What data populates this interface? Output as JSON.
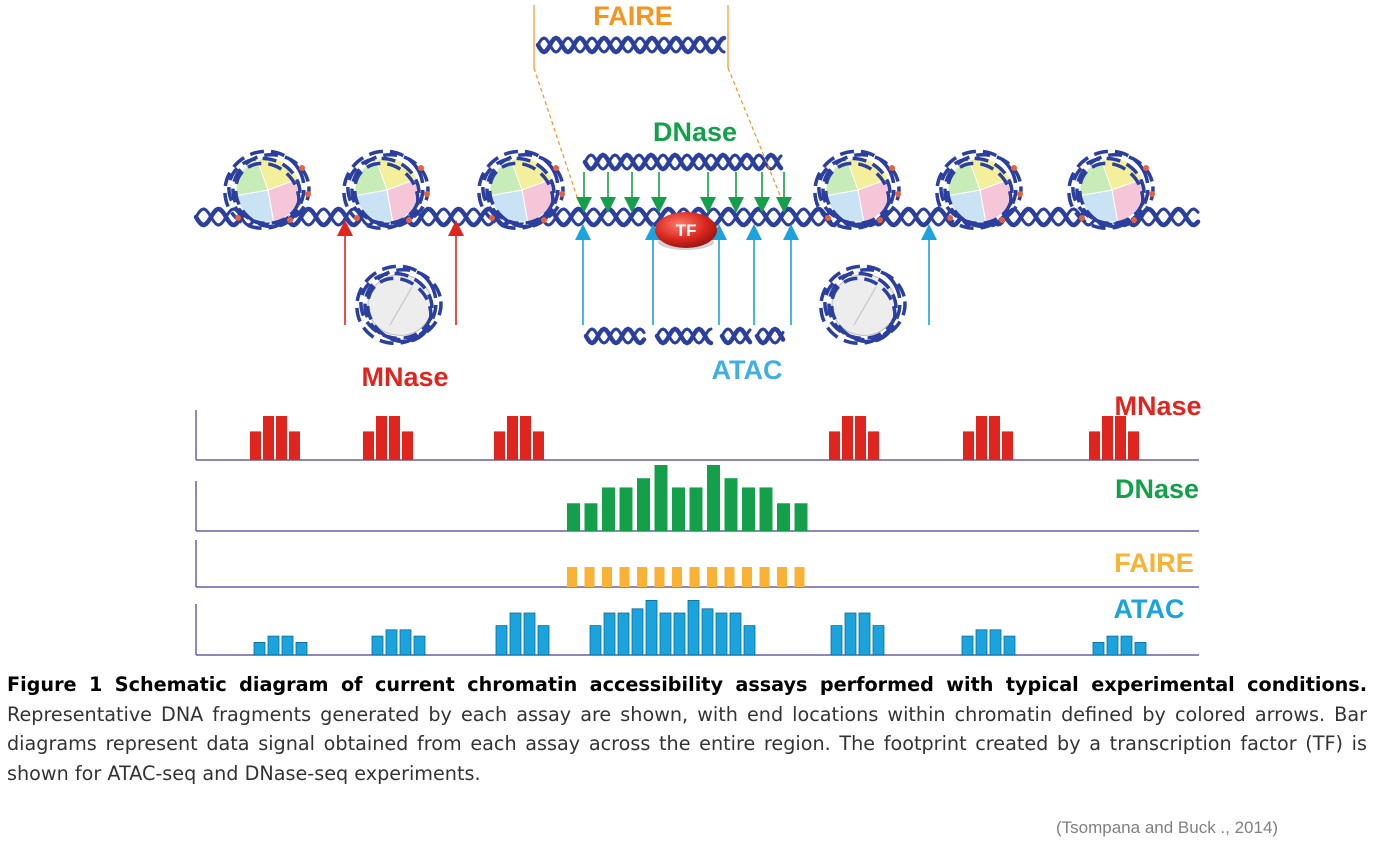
{
  "colors": {
    "mnase": "#e0251f",
    "dnase": "#14a04a",
    "faire": "#f7941d",
    "faire_bars": "#f9b233",
    "atac": "#1aa3dc",
    "atac_title": "#3fb0e0",
    "dna_strand": "#2b3f9e",
    "baseline": "#6a5fa8",
    "tf": "#d8271e"
  },
  "icons": {
    "nucleosome": "nucleosome-icon",
    "dna": "dna-helix-icon",
    "tf": "transcription-factor-icon"
  },
  "diagram": {
    "faire_label": "FAIRE",
    "dnase_label": "DNase",
    "mnase_label": "MNase",
    "atac_label": "ATAC",
    "tf_label": "TF"
  },
  "tracks": [
    {
      "name": "MNase",
      "color": "#e0251f",
      "values": [
        0.65,
        1.0,
        1.0,
        0.65,
        0.65,
        1.0,
        1.0,
        0.65,
        0.65,
        1.0,
        1.0,
        0.65,
        0.65,
        1.0,
        1.0,
        0.65,
        0.65,
        1.0,
        1.0,
        0.65,
        0.65,
        1.0,
        1.0,
        0.65
      ]
    },
    {
      "name": "DNase",
      "color": "#14a04a",
      "values": [
        0.42,
        0.42,
        0.66,
        0.66,
        0.8,
        1.0,
        0.66,
        0.66,
        1.0,
        0.8,
        0.66,
        0.66,
        0.42,
        0.42
      ]
    },
    {
      "name": "FAIRE",
      "color": "#f9b233",
      "values": [
        1,
        1,
        1,
        1,
        1,
        1,
        1,
        1,
        1,
        1,
        1,
        1,
        1,
        1
      ]
    },
    {
      "name": "ATAC",
      "color": "#1aa3dc",
      "values": [
        0.3,
        0.45,
        0.45,
        0.3,
        0.45,
        0.6,
        0.6,
        0.45,
        0.7,
        1.0,
        1.0,
        0.7,
        0.7,
        1.0,
        1.0,
        1.1,
        1.3,
        1.0,
        1.0,
        1.3,
        1.1,
        1.0,
        1.0,
        0.7,
        0.7,
        1.0,
        1.0,
        0.7,
        0.45,
        0.6,
        0.6,
        0.45,
        0.3,
        0.45,
        0.45,
        0.3
      ]
    }
  ],
  "caption": {
    "lead": "Figure 1 Schematic diagram of current chromatin accessibility assays performed with typical experimental conditions.",
    "body": " Representative DNA fragments generated by each assay are shown, with end locations within chromatin defined by colored arrows. Bar diagrams represent data signal obtained from each assay across the entire region. The footprint created by a transcription factor (TF) is shown for ATAC-seq and DNase-seq experiments."
  },
  "citation": "(Tsompana  and Buck ., 2014)"
}
